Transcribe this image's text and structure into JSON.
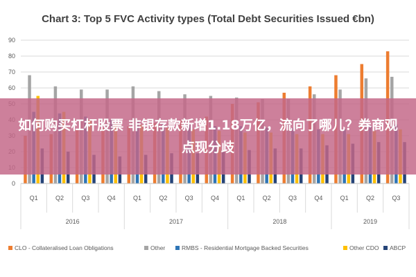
{
  "chart_data": {
    "type": "bar",
    "title": "Chart 3: Top 5 FVC Activity types (Total Debt Securities Issued €bn)",
    "xlabel": "",
    "ylabel": "",
    "ylim": [
      0,
      90
    ],
    "yticks": [
      0,
      10,
      20,
      30,
      40,
      50,
      60,
      70,
      80,
      90
    ],
    "grid": true,
    "legend_position": "bottom",
    "categories": [
      "Q1",
      "Q2",
      "Q3",
      "Q4",
      "Q1",
      "Q2",
      "Q3",
      "Q4",
      "Q1",
      "Q2",
      "Q3",
      "Q4",
      "Q1",
      "Q2",
      "Q3"
    ],
    "years": [
      {
        "label": "2016",
        "span": 4
      },
      {
        "label": "2017",
        "span": 4
      },
      {
        "label": "2018",
        "span": 4
      },
      {
        "label": "2019",
        "span": 3
      }
    ],
    "series": [
      {
        "name": "CLO - Collateralised Loan Obligations",
        "color": "#ed7d31",
        "values": [
          30,
          31,
          34,
          35,
          36,
          38,
          40,
          42,
          50,
          51,
          57,
          61,
          68,
          75,
          83
        ]
      },
      {
        "name": "Other",
        "color": "#a5a5a5",
        "values": [
          68,
          61,
          59,
          59,
          61,
          58,
          56,
          55,
          54,
          53,
          53,
          56,
          59,
          66,
          67
        ]
      },
      {
        "name": "RMBS - Residential Mortgage Backed Securities",
        "color": "#2e75b6",
        "values": [
          45,
          44,
          42,
          40,
          39,
          38,
          37,
          36,
          36,
          35,
          35,
          34,
          34,
          36,
          37
        ]
      },
      {
        "name": "Other CDO",
        "color": "#ffc000",
        "values": [
          55,
          45,
          40,
          38,
          37,
          35,
          34,
          33,
          32,
          32,
          31,
          31,
          31,
          33,
          34
        ]
      },
      {
        "name": "ABCP",
        "color": "#264478",
        "values": [
          22,
          20,
          18,
          17,
          18,
          19,
          19,
          20,
          21,
          22,
          22,
          24,
          25,
          26,
          26
        ]
      }
    ]
  },
  "overlay": {
    "text": "如何购买杠杆股票 非银存款新增1.18万亿，流向了哪儿？券商观点现分歧"
  }
}
